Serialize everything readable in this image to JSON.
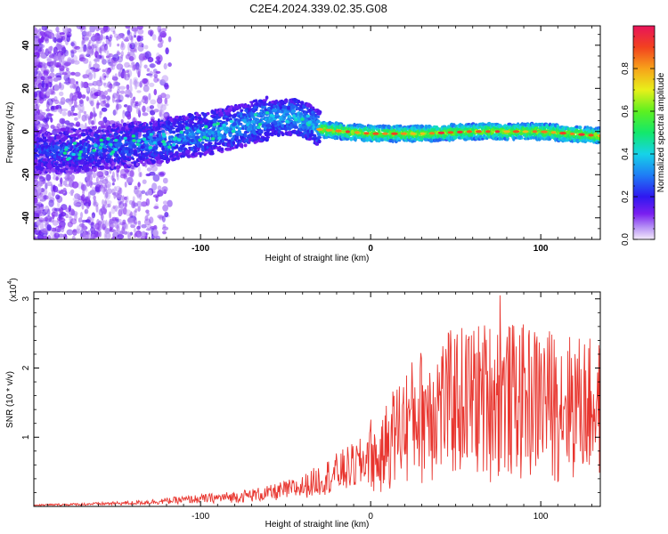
{
  "title": "C2E4.2024.339.02.35.G08",
  "chart_data": [
    {
      "type": "heatmap",
      "xlabel": "Height of straight line (km)",
      "ylabel": "Frequency (Hz)",
      "xlim": [
        -198,
        135
      ],
      "ylim": [
        -50,
        49
      ],
      "xticks": [
        -100,
        0,
        100
      ],
      "yticks": [
        -40,
        -20,
        0,
        20,
        40
      ],
      "colorbar": {
        "label": "Normalized spectral amplitude",
        "range": [
          0.0,
          1.0
        ],
        "ticks": [
          0.0,
          0.2,
          0.4,
          0.6,
          0.8
        ]
      },
      "ridge": [
        {
          "x": -175,
          "freq": -9
        },
        {
          "x": -150,
          "freq": -7
        },
        {
          "x": -120,
          "freq": -4
        },
        {
          "x": -90,
          "freq": 0
        },
        {
          "x": -60,
          "freq": 6
        },
        {
          "x": -45,
          "freq": 7
        },
        {
          "x": -35,
          "freq": 4
        },
        {
          "x": -30,
          "freq": 1
        },
        {
          "x": 0,
          "freq": -1
        },
        {
          "x": 30,
          "freq": -1
        },
        {
          "x": 60,
          "freq": 0
        },
        {
          "x": 100,
          "freq": 0
        },
        {
          "x": 135,
          "freq": -2
        }
      ]
    },
    {
      "type": "line",
      "xlabel": "Height of straight line (km)",
      "ylabel": "SNR (10 * v/v)",
      "yscale_label": "(x10",
      "yscale_exp": "4",
      "yscale_close": ")",
      "xlim": [
        -198,
        135
      ],
      "ylim": [
        0,
        3.1
      ],
      "xticks": [
        -100,
        0,
        100
      ],
      "yticks": [
        1,
        2,
        3
      ],
      "color": "#e8352e",
      "envelope": [
        {
          "x": -198,
          "y": 0.03
        },
        {
          "x": -170,
          "y": 0.05
        },
        {
          "x": -140,
          "y": 0.08
        },
        {
          "x": -110,
          "y": 0.15
        },
        {
          "x": -80,
          "y": 0.22
        },
        {
          "x": -60,
          "y": 0.3
        },
        {
          "x": -40,
          "y": 0.45
        },
        {
          "x": -25,
          "y": 0.7
        },
        {
          "x": -15,
          "y": 0.85
        },
        {
          "x": -5,
          "y": 1.0
        },
        {
          "x": 0,
          "y": 1.3
        },
        {
          "x": 5,
          "y": 1.0
        },
        {
          "x": 10,
          "y": 1.6
        },
        {
          "x": 20,
          "y": 2.0
        },
        {
          "x": 30,
          "y": 2.3
        },
        {
          "x": 50,
          "y": 2.6
        },
        {
          "x": 70,
          "y": 2.7
        },
        {
          "x": 100,
          "y": 2.6
        },
        {
          "x": 120,
          "y": 2.5
        },
        {
          "x": 135,
          "y": 2.4
        }
      ],
      "peak": {
        "x": 76,
        "y": 3.05
      }
    }
  ]
}
